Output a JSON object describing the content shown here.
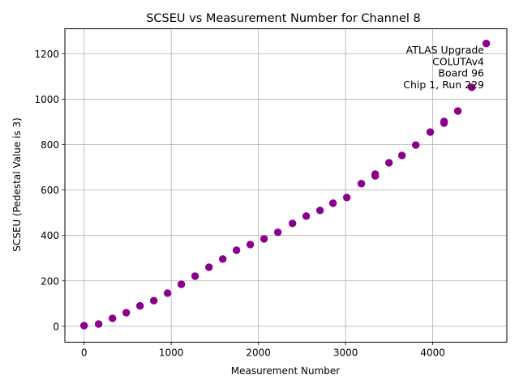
{
  "chart_data": {
    "type": "scatter",
    "title": "SCSEU vs Measurement Number for Channel 8",
    "xlabel": "Measurement Number",
    "ylabel": "SCSEU (Pedestal Value is 3)",
    "xlim": [
      -220,
      4850
    ],
    "ylim": [
      -70,
      1310
    ],
    "xticks": [
      0,
      1000,
      2000,
      3000,
      4000
    ],
    "yticks": [
      0,
      200,
      400,
      600,
      800,
      1000,
      1200
    ],
    "grid": true,
    "color": "#8b008b",
    "annotation": [
      "ATLAS Upgrade",
      "COLUTAv4",
      "Board 96",
      "Chip 1, Run 229"
    ],
    "x": [
      0,
      167,
      326,
      484,
      642,
      800,
      958,
      1116,
      1274,
      1433,
      1591,
      1749,
      1907,
      2065,
      2223,
      2391,
      2549,
      2707,
      2856,
      3014,
      3181,
      3340,
      3340,
      3498,
      3647,
      3805,
      3972,
      4130,
      4130,
      4288,
      4447,
      4614
    ],
    "y": [
      3,
      10,
      35,
      60,
      90,
      113,
      146,
      185,
      221,
      260,
      296,
      335,
      360,
      385,
      414,
      453,
      485,
      510,
      542,
      567,
      628,
      662,
      670,
      720,
      752,
      798,
      855,
      895,
      902,
      948,
      1052,
      1245
    ]
  }
}
